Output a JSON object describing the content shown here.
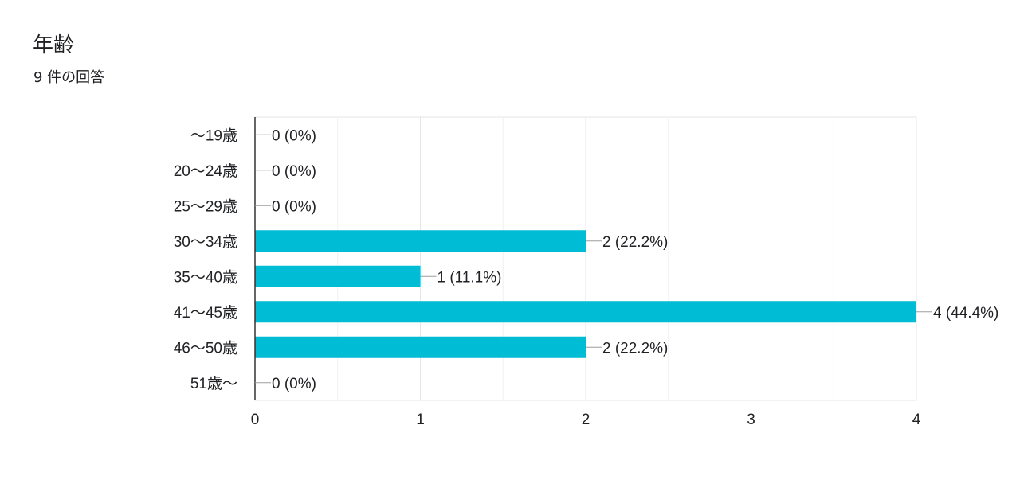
{
  "question": {
    "title": "年齢",
    "response_count": "9 件の回答"
  },
  "chart_data": {
    "type": "bar",
    "orientation": "horizontal",
    "categories": [
      "〜19歳",
      "20〜24歳",
      "25〜29歳",
      "30〜34歳",
      "35〜40歳",
      "41〜45歳",
      "46〜50歳",
      "51歳〜"
    ],
    "values": [
      0,
      0,
      0,
      2,
      1,
      4,
      2,
      0
    ],
    "data_labels": [
      "0 (0%)",
      "0 (0%)",
      "0 (0%)",
      "2 (22.2%)",
      "1 (11.1%)",
      "4 (44.4%)",
      "2 (22.2%)",
      "0 (0%)"
    ],
    "x_ticks": [
      "0",
      "1",
      "2",
      "3",
      "4"
    ],
    "xlim": [
      0,
      4
    ],
    "grid": true,
    "bar_color": "#00bcd4",
    "title": "",
    "xlabel": "",
    "ylabel": ""
  }
}
